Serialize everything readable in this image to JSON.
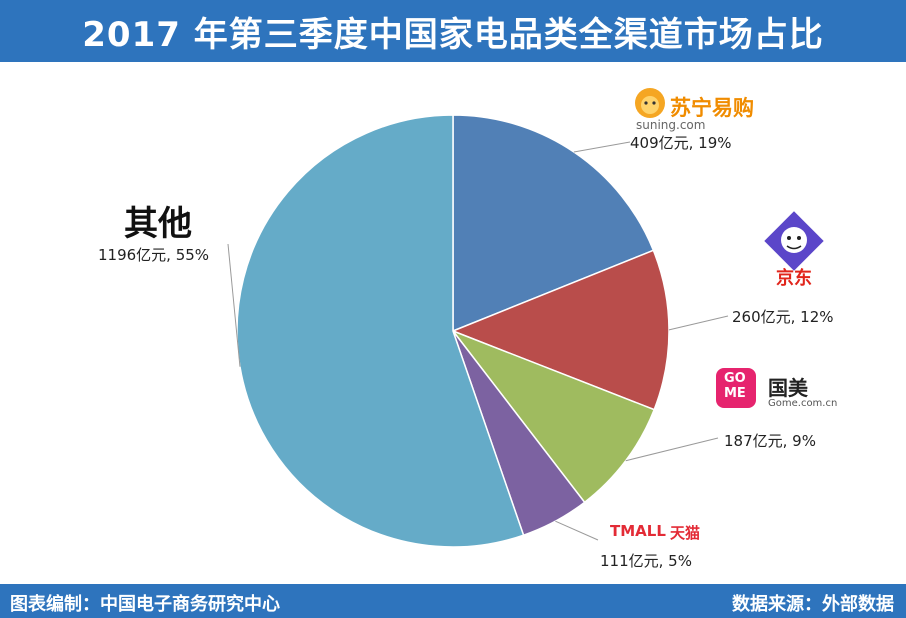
{
  "title": "2017 年第三季度中国家电品类全渠道市场占比",
  "footer": {
    "left": "图表编制：中国电子商务研究中心",
    "right": "数据来源：外部数据"
  },
  "brands": {
    "suning": {
      "cn": "苏宁易购",
      "url": "suning.com"
    },
    "jd": {
      "cn": "京东"
    },
    "gome": {
      "badge_top": "GO",
      "badge_bottom": "ME",
      "cn": "国美",
      "url": "Gome.com.cn"
    },
    "tmall": {
      "en": "TMALL",
      "cn": "天猫"
    },
    "other": {
      "cn": "其他"
    }
  },
  "chart_data": {
    "type": "pie",
    "title": "2017 年第三季度中国家电品类全渠道市场占比",
    "slices": [
      {
        "name": "苏宁易购",
        "value": 409,
        "percent": 19,
        "label": "409亿元, 19%",
        "color": "#5180b6"
      },
      {
        "name": "京东",
        "value": 260,
        "percent": 12,
        "label": "260亿元, 12%",
        "color": "#b94d4b"
      },
      {
        "name": "国美",
        "value": 187,
        "percent": 9,
        "label": "187亿元, 9%",
        "color": "#9fbb5f"
      },
      {
        "name": "天猫",
        "value": 111,
        "percent": 5,
        "label": "111亿元, 5%",
        "color": "#7c62a1"
      },
      {
        "name": "其他",
        "value": 1196,
        "percent": 55,
        "label": "1196亿元, 55%",
        "color": "#65abc8"
      }
    ]
  }
}
